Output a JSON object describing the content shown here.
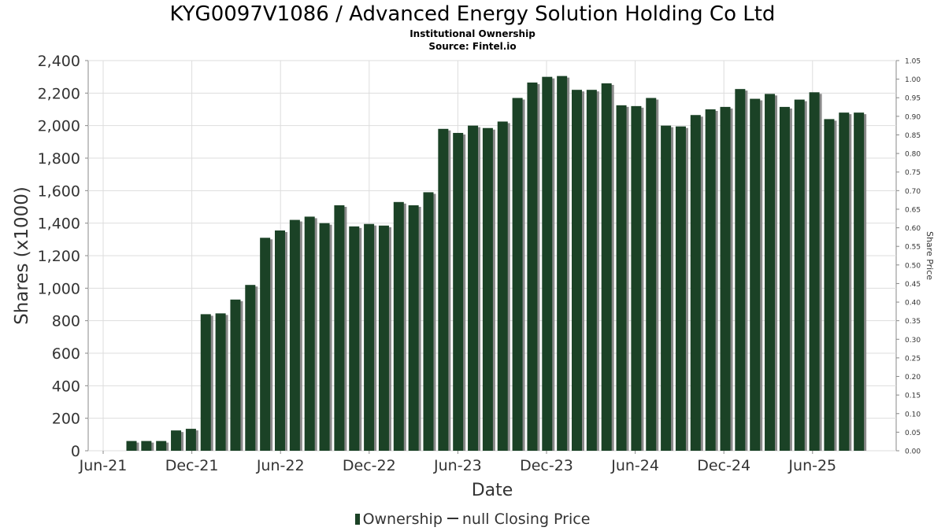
{
  "title": "KYG0097V1086 / Advanced Energy Solution Holding Co Ltd",
  "subtitle": "Institutional Ownership",
  "source": "Source: Fintel.io",
  "legend": {
    "ownership": "Ownership",
    "price": "null Closing Price"
  },
  "colors": {
    "bar": "#1b4226",
    "bar_shadow": "#8a8a8a",
    "grid": "#dddddd",
    "axis": "#888888"
  },
  "chart_data": {
    "type": "bar",
    "title": "KYG0097V1086 / Advanced Energy Solution Holding Co Ltd",
    "subtitle": "Institutional Ownership",
    "xlabel": "Date",
    "ylabel": "Shares (x1000)",
    "y2label": "Share Price",
    "ylim": [
      0,
      2400
    ],
    "y2lim": [
      0,
      1.05
    ],
    "yticks": [
      "0",
      "200",
      "400",
      "600",
      "800",
      "1,000",
      "1,200",
      "1,400",
      "1,600",
      "1,800",
      "2,000",
      "2,200",
      "2,400"
    ],
    "y2ticks": [
      "0.00",
      "0.05",
      "0.10",
      "0.15",
      "0.20",
      "0.25",
      "0.30",
      "0.35",
      "0.40",
      "0.45",
      "0.50",
      "0.55",
      "0.60",
      "0.65",
      "0.70",
      "0.75",
      "0.80",
      "0.85",
      "0.90",
      "0.95",
      "1.00",
      "1.05"
    ],
    "xticks": [
      "Jun-21",
      "Dec-21",
      "Jun-22",
      "Dec-22",
      "Jun-23",
      "Dec-23",
      "Jun-24",
      "Dec-24",
      "Jun-25"
    ],
    "grid": true,
    "legend_position": "bottom",
    "series": [
      {
        "name": "Ownership",
        "values": [
          60,
          60,
          60,
          125,
          135,
          840,
          845,
          930,
          1020,
          1310,
          1355,
          1420,
          1440,
          1400,
          1510,
          1380,
          1395,
          1385,
          1530,
          1510,
          1590,
          1980,
          1955,
          2000,
          1985,
          2025,
          2170,
          2265,
          2300,
          2305,
          2220,
          2220,
          2260,
          2125,
          2120,
          2170,
          2000,
          1995,
          2065,
          2100,
          2115,
          2225,
          2165,
          2195,
          2115,
          2160,
          2205,
          2040,
          2080,
          2080
        ]
      }
    ]
  }
}
